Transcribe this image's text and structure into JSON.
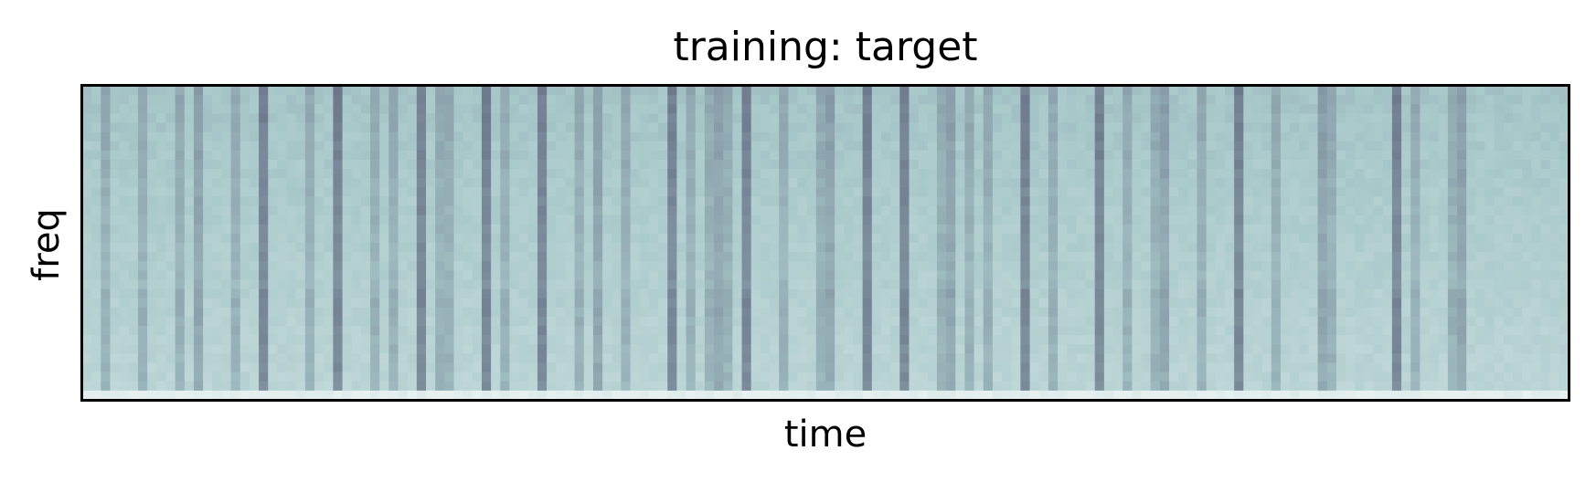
{
  "chart_data": {
    "type": "heatmap",
    "title": "training: target",
    "xlabel": "time",
    "ylabel": "freq",
    "x_ticks": [],
    "y_ticks": [],
    "grid": false,
    "legend": "none",
    "colormap": {
      "name": "bone",
      "low": "#6a7488",
      "mid": "#a8c8ca",
      "high": "#eef5f4"
    },
    "frame_color": "#000000",
    "dark_time_columns": [
      2,
      6,
      10,
      16,
      19,
      24,
      27,
      31,
      33,
      36,
      38,
      39,
      43,
      45,
      49,
      53,
      58,
      63,
      65,
      67,
      69,
      71,
      75,
      79,
      84,
      88,
      92,
      95,
      97,
      101,
      104,
      109,
      112,
      115,
      120,
      124,
      128,
      134,
      141,
      143,
      147
    ],
    "very_dark_time_columns": [
      12,
      19,
      27,
      36,
      43,
      49,
      55,
      63,
      68,
      71,
      80,
      84,
      88,
      93,
      101,
      109,
      116,
      124,
      133,
      141,
      148
    ]
  }
}
